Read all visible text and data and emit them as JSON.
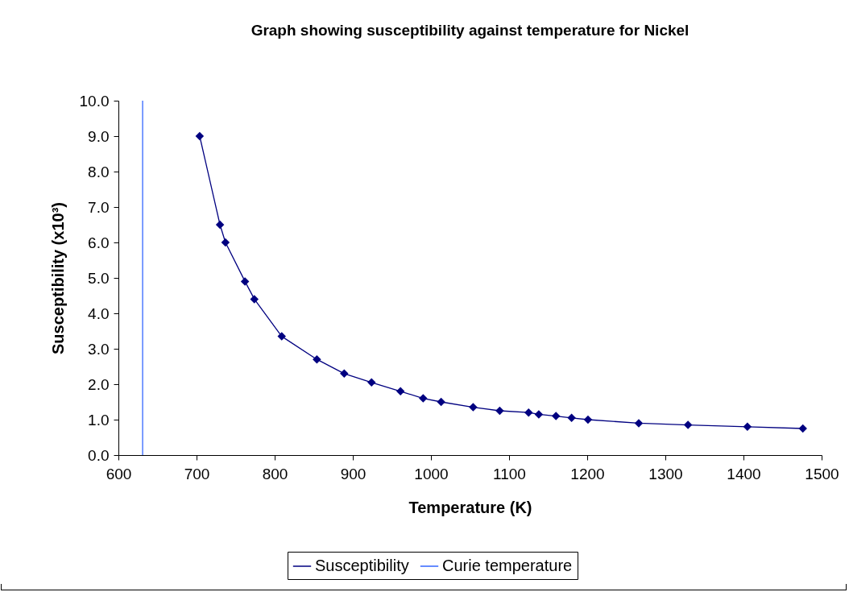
{
  "chart_data": {
    "type": "line",
    "title": "Graph showing susceptibility against temperature for Nickel",
    "xlabel": "Temperature (K)",
    "ylabel": "Susceptibility (x10³)",
    "series": [
      {
        "name": "Susceptibility",
        "color": "#000080",
        "marker": "diamond",
        "x": [
          704,
          730,
          737,
          762,
          774,
          809,
          854,
          889,
          924,
          961,
          990,
          1013,
          1054,
          1088,
          1125,
          1138,
          1160,
          1180,
          1201,
          1266,
          1329,
          1405,
          1476
        ],
        "values": [
          9.0,
          6.5,
          6.0,
          4.9,
          4.4,
          3.35,
          2.7,
          2.3,
          2.05,
          1.8,
          1.6,
          1.5,
          1.35,
          1.25,
          1.2,
          1.15,
          1.1,
          1.05,
          1.0,
          0.9,
          0.85,
          0.8,
          0.75
        ]
      },
      {
        "name": "Curie temperature",
        "color": "#3366ff",
        "marker": "none",
        "x": [
          631,
          631
        ],
        "values": [
          0,
          10
        ]
      }
    ],
    "xlim": [
      600,
      1500
    ],
    "xticks": [
      600,
      700,
      800,
      900,
      1000,
      1100,
      1200,
      1300,
      1400,
      1500
    ],
    "ylim": [
      0,
      10
    ],
    "yticks": [
      {
        "value": 0,
        "label": "0.0"
      },
      {
        "value": 1,
        "label": "1.0"
      },
      {
        "value": 2,
        "label": "2.0"
      },
      {
        "value": 3,
        "label": "3.0"
      },
      {
        "value": 4,
        "label": "4.0"
      },
      {
        "value": 5,
        "label": "5.0"
      },
      {
        "value": 6,
        "label": "6.0"
      },
      {
        "value": 7,
        "label": "7.0"
      },
      {
        "value": 8,
        "label": "8.0"
      },
      {
        "value": 9,
        "label": "9.0"
      },
      {
        "value": 10,
        "label": "10.0"
      }
    ],
    "grid": false,
    "legend": "bottom",
    "line_style": "solid"
  }
}
